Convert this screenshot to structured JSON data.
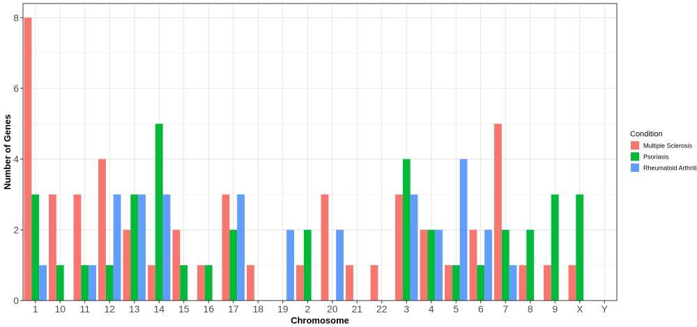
{
  "chart_data": {
    "type": "bar",
    "xlabel": "Chromosome",
    "ylabel": "Number of Genes",
    "ylim": [
      0,
      8.4
    ],
    "yticks": [
      0,
      2,
      4,
      6,
      8
    ],
    "grid": true,
    "legend_position": "right",
    "legend_title": "Condition",
    "categories": [
      "1",
      "10",
      "11",
      "12",
      "13",
      "14",
      "15",
      "16",
      "17",
      "18",
      "19",
      "2",
      "20",
      "21",
      "22",
      "3",
      "4",
      "5",
      "6",
      "7",
      "8",
      "9",
      "X",
      "Y"
    ],
    "series": [
      {
        "name": "Multiple Sclerosis",
        "color": "#F8766D",
        "values": [
          8,
          3,
          3,
          4,
          2,
          1,
          2,
          1,
          3,
          1,
          0,
          1,
          3,
          1,
          1,
          3,
          2,
          1,
          2,
          5,
          1,
          1,
          1,
          0
        ]
      },
      {
        "name": "Psoriasis",
        "color": "#00BA38",
        "values": [
          3,
          1,
          1,
          1,
          3,
          5,
          1,
          1,
          2,
          0,
          0,
          2,
          0,
          0,
          0,
          4,
          2,
          1,
          1,
          2,
          2,
          3,
          3,
          0
        ]
      },
      {
        "name": "Rheumatoid Arthritis",
        "color": "#619CFF",
        "values": [
          1,
          0,
          1,
          3,
          3,
          3,
          0,
          0,
          3,
          0,
          2,
          0,
          2,
          0,
          0,
          3,
          2,
          4,
          2,
          1,
          0,
          0,
          0,
          0
        ]
      }
    ]
  }
}
